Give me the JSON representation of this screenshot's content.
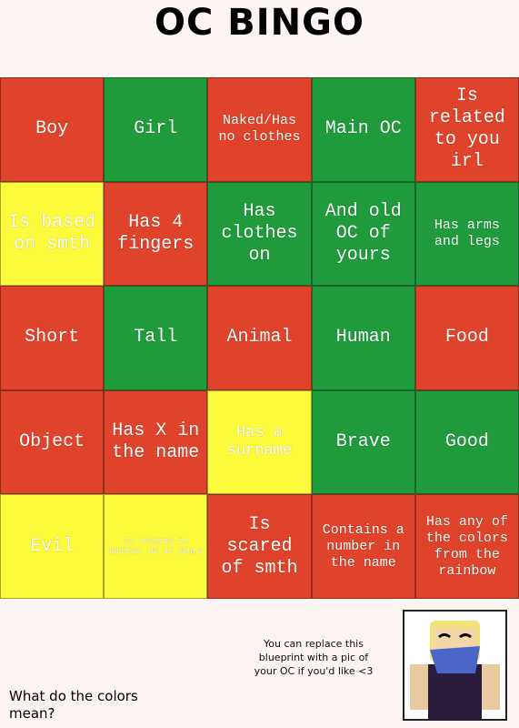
{
  "header": {
    "title": "OC BINGO"
  },
  "grid": {
    "cells": [
      [
        {
          "text": "Boy",
          "color": "#e0432b"
        },
        {
          "text": "Girl",
          "color": "#1f9b3b"
        },
        {
          "text": "Naked/Has no clothes",
          "color": "#e0432b"
        },
        {
          "text": "Main OC",
          "color": "#1f9b3b"
        },
        {
          "text": "Is related to you irl",
          "color": "#e0432b"
        }
      ],
      [
        {
          "text": "Is based on smth",
          "color": "#fbfb3c"
        },
        {
          "text": "Has 4 fingers",
          "color": "#e0432b"
        },
        {
          "text": "Has clothes on",
          "color": "#1f9b3b"
        },
        {
          "text": "And old OC of yours",
          "color": "#1f9b3b"
        },
        {
          "text": "Has arms and legs",
          "color": "#1f9b3b"
        }
      ],
      [
        {
          "text": "Short",
          "color": "#e0432b"
        },
        {
          "text": "Tall",
          "color": "#1f9b3b"
        },
        {
          "text": "Animal",
          "color": "#e0432b"
        },
        {
          "text": "Human",
          "color": "#1f9b3b"
        },
        {
          "text": "Food",
          "color": "#e0432b"
        }
      ],
      [
        {
          "text": "Object",
          "color": "#e0432b"
        },
        {
          "text": "Has X in the name",
          "color": "#e0432b"
        },
        {
          "text": "Has a surname",
          "color": "#fbfb3c"
        },
        {
          "text": "Brave",
          "color": "#1f9b3b"
        },
        {
          "text": "Good",
          "color": "#1f9b3b"
        }
      ],
      [
        {
          "text": "Evil",
          "color": "#fbfb3c"
        },
        {
          "text": "Is related to another OC of yours",
          "color": "#fbfb3c"
        },
        {
          "text": "Is scared of smth",
          "color": "#e0432b"
        },
        {
          "text": "Contains a number in the name",
          "color": "#e0432b"
        },
        {
          "text": "Has any of the colors from the rainbow",
          "color": "#e0432b"
        }
      ]
    ]
  },
  "note": "You can replace this blueprint with a pic of your OC if you'd like <3",
  "question": "What do the colors mean?"
}
